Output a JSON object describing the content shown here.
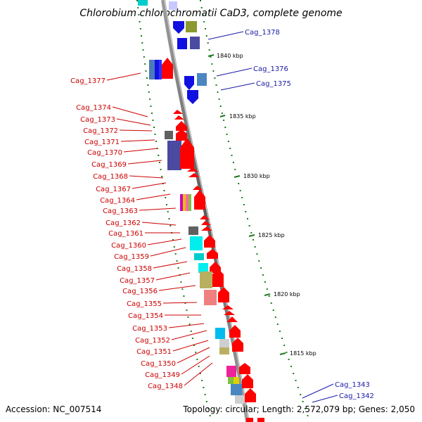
{
  "title": "Chlorobium chlorochromatii CaD3, complete genome",
  "accession": "Accession: NC_007514",
  "topology": "Topology: circular; Length: 2,572,079 bp; Genes: 2,050",
  "kbp_ticks": [
    "1840 kbp",
    "1835 kbp",
    "1830 kbp",
    "1825 kbp",
    "1820 kbp",
    "1815 kbp"
  ],
  "left_labels": [
    "Cag_1377",
    "Cag_1374",
    "Cag_1373",
    "Cag_1372",
    "Cag_1371",
    "Cag_1370",
    "Cag_1369",
    "Cag_1368",
    "Cag_1367",
    "Cag_1364",
    "Cag_1363",
    "Cag_1362",
    "Cag_1361",
    "Cag_1360",
    "Cag_1359",
    "Cag_1358",
    "Cag_1357",
    "Cag_1356",
    "Cag_1355",
    "Cag_1354",
    "Cag_1353",
    "Cag_1352",
    "Cag_1351",
    "Cag_1350",
    "Cag_1349",
    "Cag_1348"
  ],
  "right_labels": [
    "Cag_1378",
    "Cag_1376",
    "Cag_1375",
    "Cag_1343",
    "Cag_1342"
  ],
  "colors": {
    "left_label": "#cc0000",
    "right_label": "#1a1aa8",
    "tick": "#1e7a1e",
    "backbone": "#808080",
    "forward_gene": "#ff0000",
    "reverse_gene": "#1010e0"
  }
}
